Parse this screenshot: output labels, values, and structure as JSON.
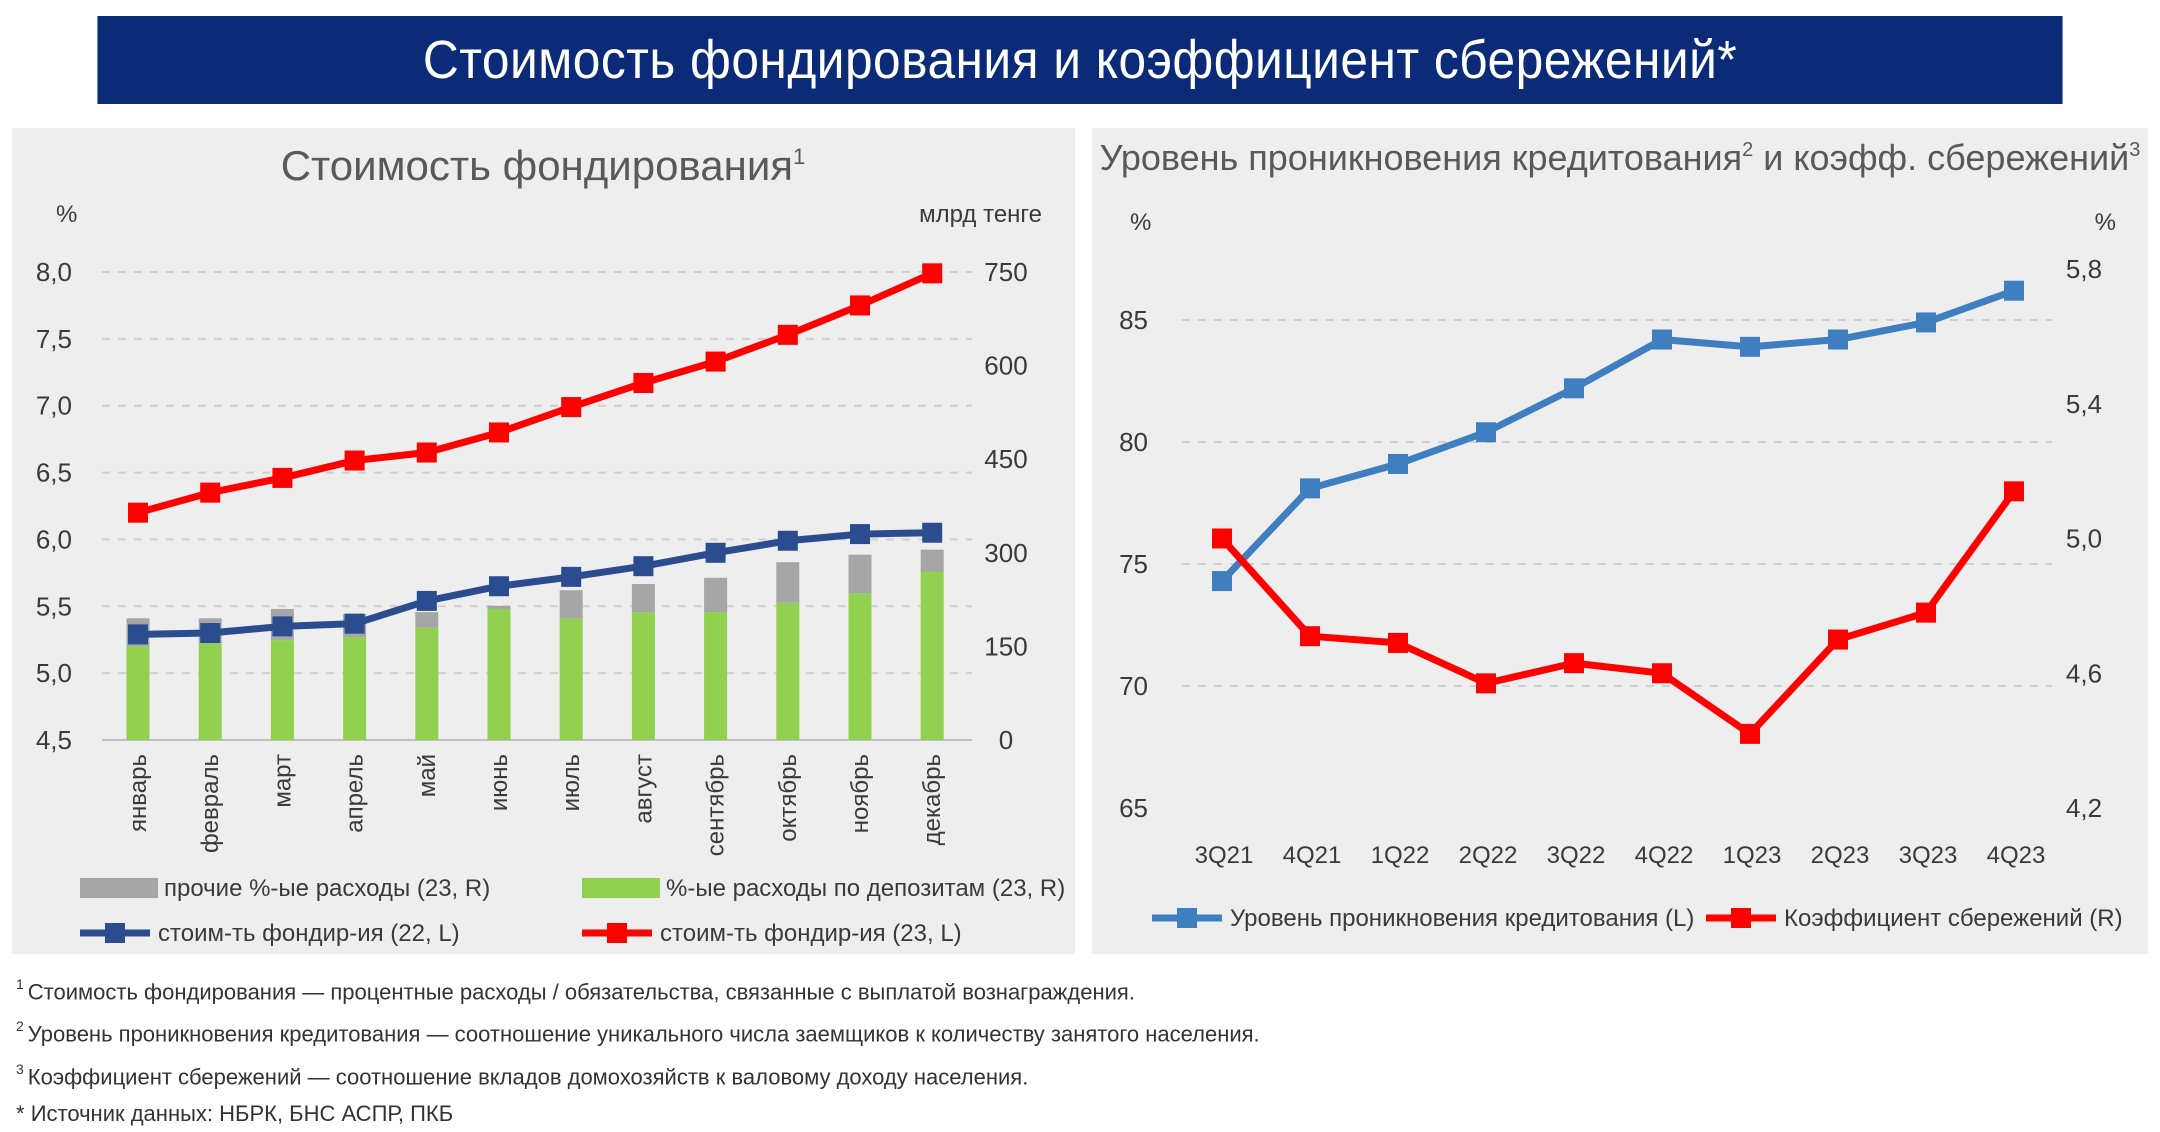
{
  "banner_title": "Стоимость фондирования и коэффициент сбережений*",
  "footnotes": [
    {
      "mark": "1",
      "text": "Стоимость фондирования — процентные расходы / обязательства, связанные с выплатой вознаграждения."
    },
    {
      "mark": "2",
      "text": "Уровень проникновения кредитования — соотношение уникального числа заемщиков к количеству занятого населения."
    },
    {
      "mark": "3",
      "text": "Коэффициент сбережений — соотношение вкладов домохозяйств к валовому доходу населения."
    },
    {
      "mark": "*",
      "text": "Источник данных: НБРК, БНС АСПР, ПКБ"
    }
  ],
  "colors": {
    "banner": "#0b2a78",
    "gray_bar": "#a6a6a6",
    "green_bar": "#92d050",
    "navy_line": "#2b4d8f",
    "red_line": "#ff0000",
    "blue_line": "#3f7fc0"
  },
  "chart_data": [
    {
      "type": "bar+line",
      "title": "Стоимость фондирования",
      "title_sup": "1",
      "left_axis_label": "%",
      "right_axis_label": "млрд тенге",
      "categories": [
        "январь",
        "февраль",
        "март",
        "апрель",
        "май",
        "июнь",
        "июль",
        "август",
        "сентябрь",
        "октябрь",
        "ноябрь",
        "декабрь"
      ],
      "left_ticks": [
        "4,5",
        "5,0",
        "5,5",
        "6,0",
        "6,5",
        "7,0",
        "7,5",
        "8,0"
      ],
      "right_ticks": [
        "0",
        "150",
        "300",
        "450",
        "600",
        "750"
      ],
      "ylim_left": [
        4.5,
        8.0
      ],
      "ylim_right": [
        0,
        750
      ],
      "bars_stacked": [
        {
          "name": "%-ые расходы по депозитам (23, R)",
          "color": "#92d050",
          "axis": "right",
          "values": [
            150,
            155,
            160,
            165,
            180,
            210,
            195,
            205,
            205,
            220,
            235,
            270
          ]
        },
        {
          "name": "прочие %-ые расходы (23, R)",
          "color": "#a6a6a6",
          "axis": "right",
          "values": [
            45,
            40,
            50,
            37,
            25,
            5,
            45,
            45,
            55,
            65,
            62,
            35
          ]
        }
      ],
      "lines": [
        {
          "name": "стоим-ть фондир-ия (22, L)",
          "color": "#2b4d8f",
          "axis": "left",
          "values": [
            5.29,
            5.3,
            5.35,
            5.37,
            5.54,
            5.65,
            5.72,
            5.8,
            5.9,
            5.99,
            6.04,
            6.05
          ]
        },
        {
          "name": "стоим-ть фондир-ия (23, L)",
          "color": "#ff0000",
          "axis": "left",
          "values": [
            6.2,
            6.35,
            6.46,
            6.59,
            6.65,
            6.8,
            6.99,
            7.17,
            7.33,
            7.53,
            7.75,
            7.99
          ]
        }
      ],
      "grid": true,
      "legend_position": "bottom"
    },
    {
      "type": "line",
      "title": "Уровень проникновения кредитования",
      "title_sup1": "2",
      "title_mid": " и коэфф. сбережений",
      "title_sup2": "3",
      "left_axis_label": "%",
      "right_axis_label": "%",
      "categories": [
        "3Q21",
        "4Q21",
        "1Q22",
        "2Q22",
        "3Q22",
        "4Q22",
        "1Q23",
        "2Q23",
        "3Q23",
        "4Q23"
      ],
      "left_ticks": [
        "65",
        "70",
        "75",
        "80",
        "85"
      ],
      "right_ticks": [
        "4,2",
        "4,6",
        "5,0",
        "5,4",
        "5,8"
      ],
      "ylim_left": [
        65,
        88
      ],
      "ylim_right": [
        4.2,
        5.8
      ],
      "lines": [
        {
          "name": "Уровень проникновения кредитования (L)",
          "color": "#3f7fc0",
          "axis": "left",
          "values": [
            74.3,
            78.1,
            79.1,
            80.4,
            82.2,
            84.2,
            83.9,
            84.2,
            84.9,
            86.2
          ]
        },
        {
          "name": "Коэффициент сбережений (R)",
          "color": "#ff0000",
          "axis": "right",
          "values": [
            5.0,
            4.71,
            4.69,
            4.57,
            4.63,
            4.6,
            4.42,
            4.7,
            4.78,
            5.14
          ]
        }
      ],
      "grid": true,
      "legend_position": "bottom"
    }
  ]
}
